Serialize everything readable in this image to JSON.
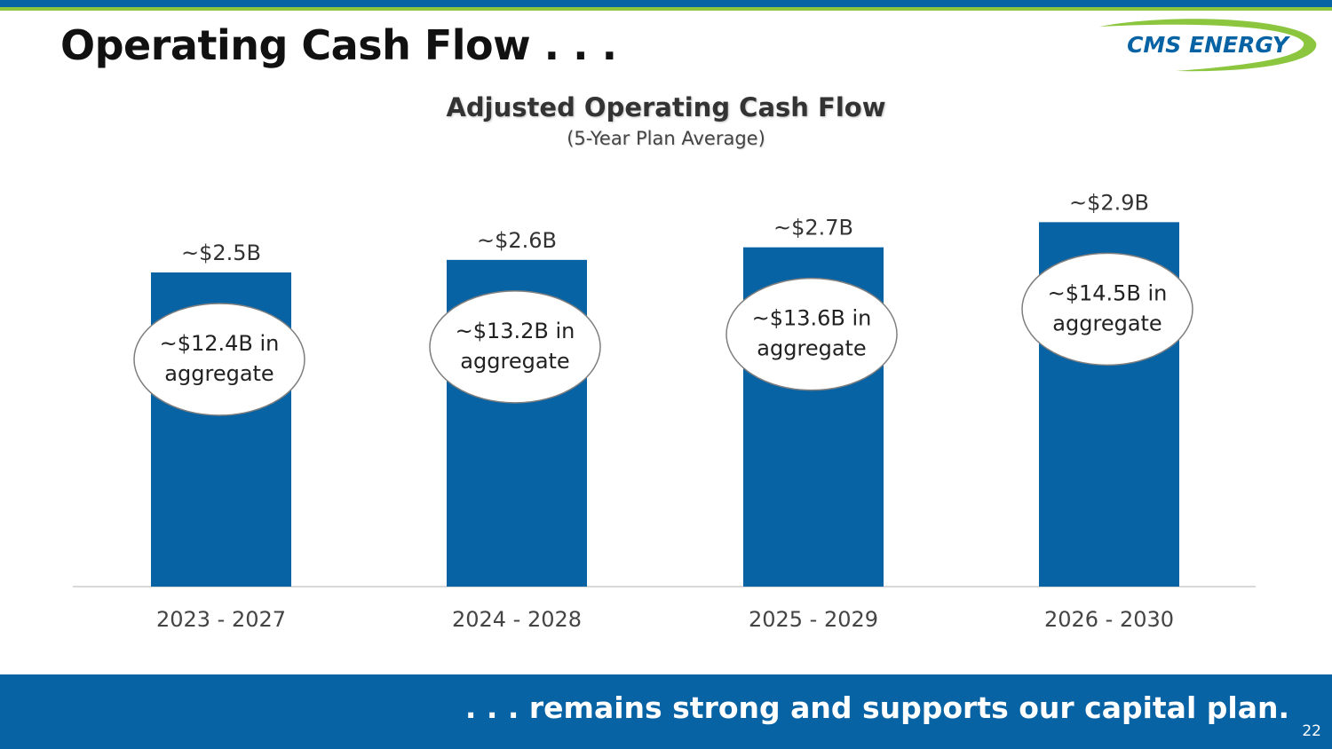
{
  "slide": {
    "title": "Operating Cash Flow . . .",
    "footer": ". . . remains strong and supports our capital plan.",
    "page_number": "22"
  },
  "logo": {
    "text": "CMS ENERGY"
  },
  "colors": {
    "bar": "#0863a4",
    "accent": "#8cc63f",
    "footer": "#0863a4"
  },
  "chart_data": {
    "type": "bar",
    "title": "Adjusted Operating Cash Flow",
    "subtitle": "(5-Year Plan Average)",
    "xlabel": "",
    "ylabel": "",
    "ylim": [
      0,
      3.0
    ],
    "grid": false,
    "categories": [
      "2023 - 2027",
      "2024 - 2028",
      "2025 - 2029",
      "2026 - 2030"
    ],
    "values": [
      2.5,
      2.6,
      2.7,
      2.9
    ],
    "unit": "$B",
    "data_labels": [
      "~$2.5B",
      "~$2.6B",
      "~$2.7B",
      "~$2.9B"
    ],
    "annotations": [
      [
        "~$12.4B in",
        "aggregate"
      ],
      [
        "~$13.2B in",
        "aggregate"
      ],
      [
        "~$13.6B in",
        "aggregate"
      ],
      [
        "~$14.5B in",
        "aggregate"
      ]
    ]
  }
}
